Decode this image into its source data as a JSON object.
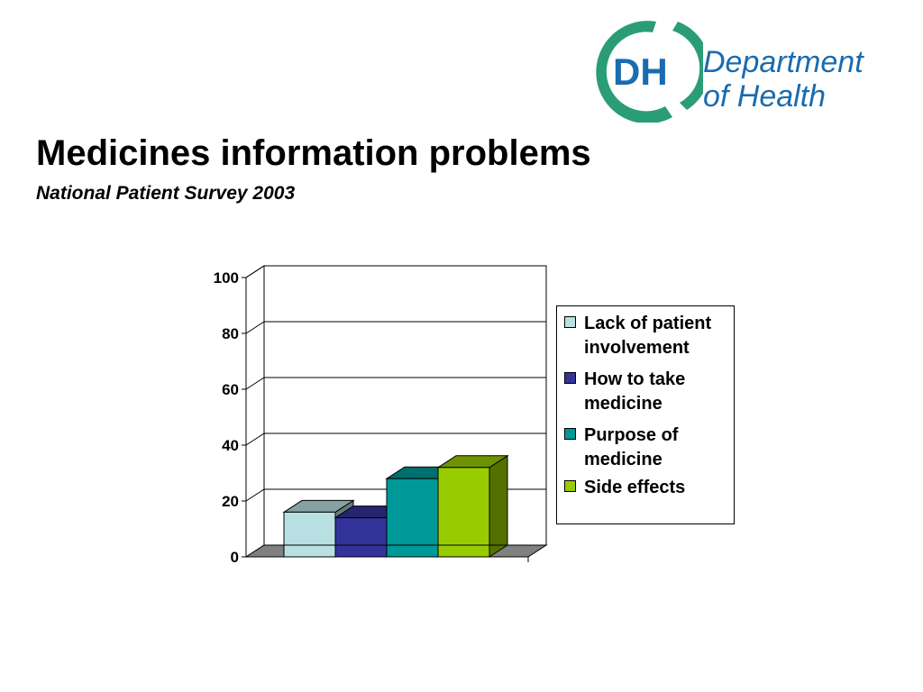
{
  "slide": {
    "title": "Medicines information problems",
    "subtitle": "National Patient Survey 2003"
  },
  "logo": {
    "monogram": "DH",
    "name_line1": "Department",
    "name_line2": "of Health",
    "colors": {
      "ring": "#2a9d74",
      "text": "#1a6bb0"
    }
  },
  "chart_data": {
    "type": "bar",
    "style": "3d-clustered",
    "categories": [
      ""
    ],
    "series": [
      {
        "name": "Lack of patient involvement",
        "values": [
          16
        ],
        "color": "#b8e0e2"
      },
      {
        "name": "How to take medicine",
        "values": [
          14
        ],
        "color": "#333399"
      },
      {
        "name": "Purpose of medicine",
        "values": [
          28
        ],
        "color": "#009999"
      },
      {
        "name": "Side effects",
        "values": [
          32
        ],
        "color": "#99cc00"
      }
    ],
    "ylim": [
      0,
      100
    ],
    "yticks": [
      "0",
      "20",
      "40",
      "60",
      "80",
      "100"
    ],
    "grid": true,
    "legend_position": "right",
    "floor_color": "#808080"
  }
}
